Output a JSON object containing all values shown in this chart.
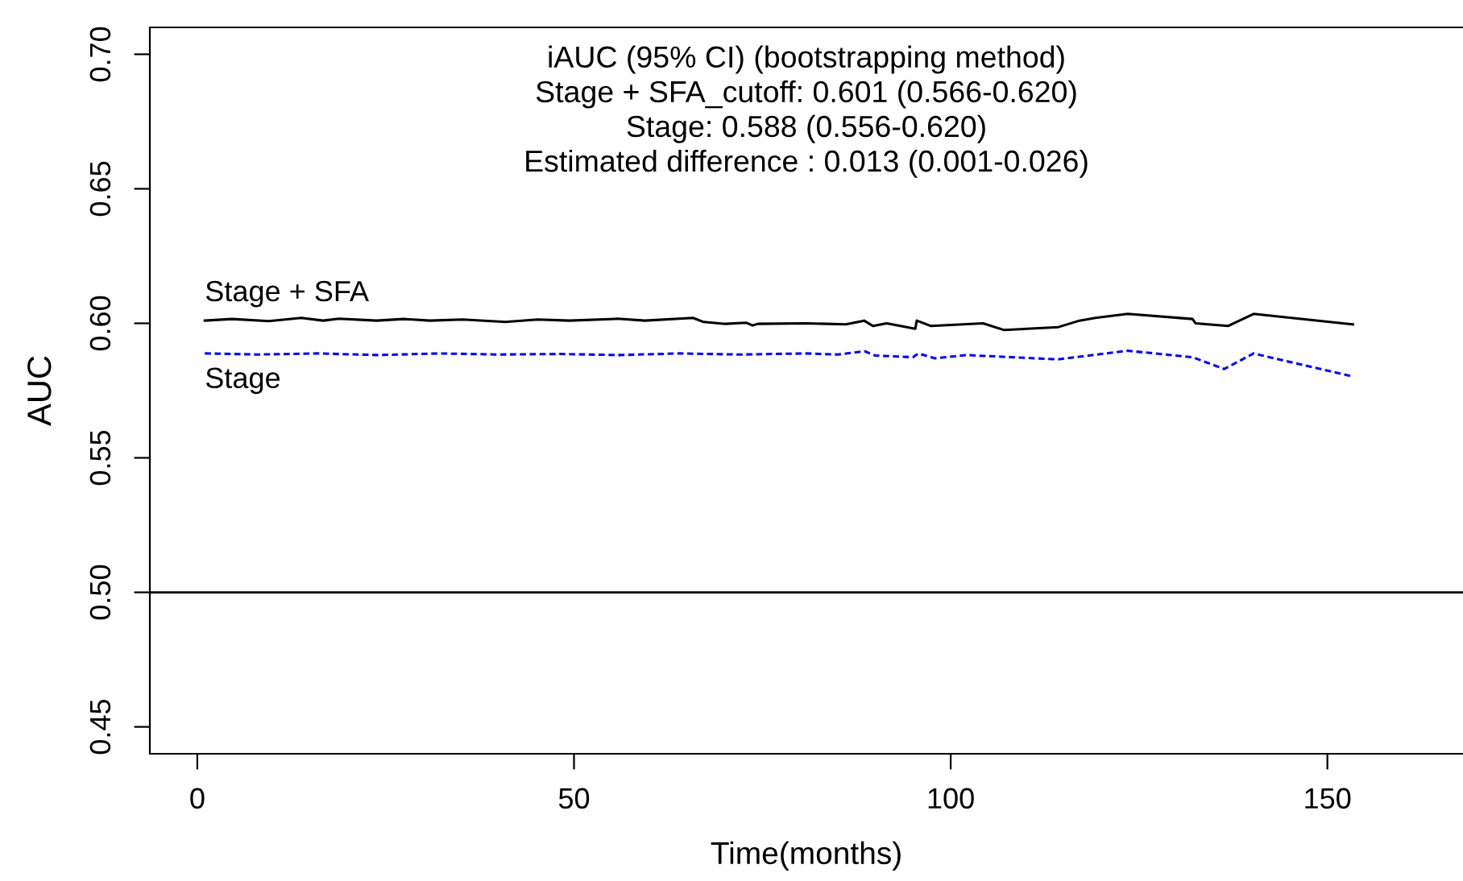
{
  "chart_data": {
    "type": "line",
    "xlabel": "Time(months)",
    "ylabel": "AUC",
    "xlim": [
      -6.3,
      168
    ],
    "ylim": [
      0.44,
      0.71
    ],
    "xticks": [
      0,
      50,
      100,
      150
    ],
    "yticks": [
      {
        "value": 0.45,
        "label": "0.45"
      },
      {
        "value": 0.5,
        "label": "0.50"
      },
      {
        "value": 0.55,
        "label": "0.55"
      },
      {
        "value": 0.6,
        "label": "0.60"
      },
      {
        "value": 0.65,
        "label": "0.65"
      },
      {
        "value": 0.7,
        "label": "0.70"
      }
    ],
    "grid": false,
    "legend": false,
    "ref_lines": [
      {
        "axis": "y",
        "value": 0.5,
        "color": "#000000",
        "line_style": "solid"
      }
    ],
    "annotations": [
      "iAUC (95% CI) (bootstrapping method)\nStage + SFA_cutoff: 0.601 (0.566-0.620)\nStage: 0.588 (0.556-0.620)\nEstimated difference : 0.013 (0.001-0.026)",
      "Stage + SFA",
      "Stage"
    ],
    "series": [
      {
        "color": "#000000",
        "line_style": "solid",
        "x": [
          1.0,
          4.6,
          9.5,
          13.8,
          16.7,
          18.8,
          23.8,
          27.4,
          30.9,
          35.2,
          40.9,
          45.2,
          49.4,
          55.8,
          59.4,
          65.8,
          67.2,
          70.1,
          72.9,
          73.7,
          74.4,
          80.8,
          86.1,
          88.5,
          89.7,
          91.5,
          95.3,
          95.5,
          97.4,
          104.3,
          107.1,
          114.3,
          117.1,
          119.2,
          123.5,
          132.1,
          132.5,
          136.8,
          140.2,
          153.4
        ],
        "values": [
          0.601,
          0.6016,
          0.6008,
          0.602,
          0.601,
          0.6017,
          0.601,
          0.6016,
          0.601,
          0.6014,
          0.6005,
          0.6014,
          0.601,
          0.6017,
          0.601,
          0.602,
          0.6005,
          0.5998,
          0.6002,
          0.5992,
          0.5998,
          0.6,
          0.5996,
          0.601,
          0.599,
          0.6,
          0.598,
          0.601,
          0.599,
          0.6,
          0.5975,
          0.5986,
          0.601,
          0.602,
          0.6035,
          0.6016,
          0.6,
          0.599,
          0.6035,
          0.5996
        ]
      },
      {
        "color": "#0000ff",
        "line_style": "dashed",
        "x": [
          1,
          8,
          16,
          24,
          32,
          40,
          48,
          56,
          64,
          72,
          80.8,
          85.0,
          88.6,
          90.0,
          95.0,
          95.7,
          97.9,
          102.1,
          114.2,
          123.5,
          132.1,
          136.3,
          140.2,
          153.1
        ],
        "values": [
          0.5888,
          0.5884,
          0.5888,
          0.5882,
          0.5888,
          0.5884,
          0.5886,
          0.5882,
          0.5888,
          0.5884,
          0.5888,
          0.5884,
          0.5896,
          0.588,
          0.5874,
          0.5888,
          0.587,
          0.5882,
          0.5866,
          0.5898,
          0.5874,
          0.583,
          0.5888,
          0.5804
        ]
      }
    ]
  }
}
